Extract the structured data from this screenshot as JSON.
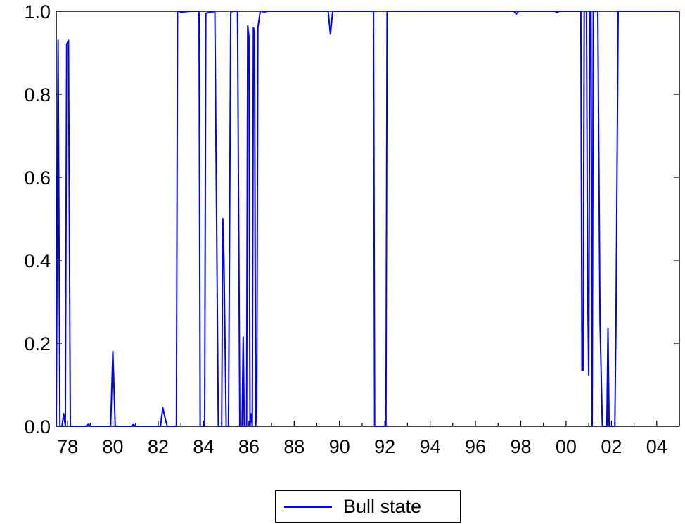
{
  "chart_data": {
    "type": "line",
    "title": "",
    "xlabel": "",
    "ylabel": "",
    "x_range": [
      1977.5,
      2005.0
    ],
    "ylim": [
      0.0,
      1.0
    ],
    "y_ticks": [
      "0.0",
      "0.2",
      "0.4",
      "0.6",
      "0.8",
      "1.0"
    ],
    "x_ticks": [
      {
        "value": 1978,
        "label": "78"
      },
      {
        "value": 1980,
        "label": "80"
      },
      {
        "value": 1982,
        "label": "82"
      },
      {
        "value": 1984,
        "label": "84"
      },
      {
        "value": 1986,
        "label": "86"
      },
      {
        "value": 1988,
        "label": "88"
      },
      {
        "value": 1990,
        "label": "90"
      },
      {
        "value": 1992,
        "label": "92"
      },
      {
        "value": 1994,
        "label": "94"
      },
      {
        "value": 1996,
        "label": "96"
      },
      {
        "value": 1998,
        "label": "98"
      },
      {
        "value": 2000,
        "label": "00"
      },
      {
        "value": 2002,
        "label": "02"
      },
      {
        "value": 2004,
        "label": "04"
      }
    ],
    "grid": false,
    "legend_position": "bottom-center",
    "series": [
      {
        "name": "Bull state",
        "color": "#0000ff",
        "x": [
          1977.5,
          1977.58,
          1977.66,
          1977.75,
          1977.83,
          1977.9,
          1977.96,
          1978.04,
          1978.12,
          1978.2,
          1978.5,
          1978.8,
          1978.92,
          1979.0,
          1979.3,
          1979.5,
          1979.9,
          1980.0,
          1980.1,
          1980.2,
          1980.3,
          1980.8,
          1980.9,
          1981.0,
          1981.4,
          1981.5,
          1981.6,
          1981.7,
          1981.8,
          1982.0,
          1982.1,
          1982.2,
          1982.3,
          1982.4,
          1982.5,
          1982.6,
          1982.7,
          1982.8,
          1982.85,
          1982.9,
          1983.0,
          1983.4,
          1983.5,
          1983.55,
          1983.6,
          1983.65,
          1983.7,
          1983.75,
          1983.8,
          1983.85,
          1983.9,
          1984.0,
          1984.05,
          1984.1,
          1984.5,
          1984.65,
          1984.8,
          1984.85,
          1984.9,
          1985.0,
          1985.1,
          1985.2,
          1985.3,
          1985.4,
          1985.5,
          1985.6,
          1985.7,
          1985.75,
          1985.8,
          1985.85,
          1985.9,
          1985.95,
          1986.0,
          1986.05,
          1986.1,
          1986.15,
          1986.2,
          1986.25,
          1986.3,
          1986.35,
          1986.4,
          1986.5,
          1986.7,
          1986.8,
          1987.0,
          1989.5,
          1989.6,
          1989.7,
          1989.8,
          1990.0,
          1991.5,
          1991.55,
          1991.7,
          1991.9,
          1992.05,
          1992.1,
          1992.3,
          1994.0,
          1996.0,
          1997.7,
          1997.8,
          1997.9,
          1999.5,
          1999.6,
          1999.7,
          2000.5,
          2000.6,
          2000.65,
          2000.7,
          2000.75,
          2000.8,
          2000.9,
          2000.95,
          2001.0,
          2001.05,
          2001.1,
          2001.15,
          2001.2,
          2001.3,
          2001.4,
          2001.5,
          2001.6,
          2001.65,
          2001.7,
          2001.75,
          2001.8,
          2001.85,
          2001.9,
          2001.95,
          2002.0,
          2002.05,
          2002.1,
          2002.15,
          2002.2,
          2002.3,
          2002.4,
          2002.5,
          2002.6,
          2002.7,
          2002.8,
          2003.0,
          2004.0,
          2005.0
        ],
        "values": [
          0.0,
          0.93,
          0.0,
          0.0,
          0.03,
          0.0,
          0.92,
          0.93,
          0.0,
          0.0,
          0.0,
          0.0,
          0.005,
          0.0,
          0.0,
          0.0,
          0.0,
          0.18,
          0.0,
          0.0,
          0.0,
          0.0,
          0.004,
          0.0,
          0.0,
          0.0,
          0.0,
          0.0,
          0.0,
          0.0,
          0.0,
          0.045,
          0.02,
          0.0,
          0.0,
          0.0,
          0.0,
          0.0,
          1.0,
          1.0,
          0.998,
          1.0,
          1.0,
          1.0,
          1.0,
          1.0,
          1.0,
          1.0,
          1.0,
          0.0,
          0.0,
          0.0,
          0.0,
          0.995,
          1.0,
          0.0,
          0.0,
          0.5,
          0.4,
          0.0,
          0.0,
          0.998,
          1.0,
          1.0,
          1.0,
          0.0,
          0.0,
          0.215,
          0.0,
          0.0,
          0.0,
          0.965,
          0.94,
          0.0,
          0.03,
          0.0,
          0.96,
          0.95,
          0.0,
          0.045,
          0.96,
          1.0,
          0.998,
          1.0,
          1.0,
          1.0,
          0.945,
          1.0,
          1.0,
          1.0,
          1.0,
          0.0,
          0.0,
          0.0,
          0.0,
          1.0,
          1.0,
          1.0,
          1.0,
          1.0,
          0.993,
          1.0,
          1.0,
          0.997,
          1.0,
          1.0,
          1.0,
          1.0,
          0.135,
          0.135,
          1.0,
          1.0,
          0.35,
          0.123,
          1.0,
          1.0,
          0.0,
          1.0,
          1.0,
          1.0,
          0.25,
          0.0,
          0.0,
          0.0,
          0.0,
          0.0,
          0.235,
          0.0,
          0.0,
          0.0,
          0.0,
          0.0,
          0.0,
          0.235,
          1.0,
          1.0,
          1.0,
          1.0,
          1.0,
          1.0,
          1.0,
          1.0,
          1.0
        ]
      }
    ]
  },
  "legend": {
    "label": "Bull state"
  }
}
